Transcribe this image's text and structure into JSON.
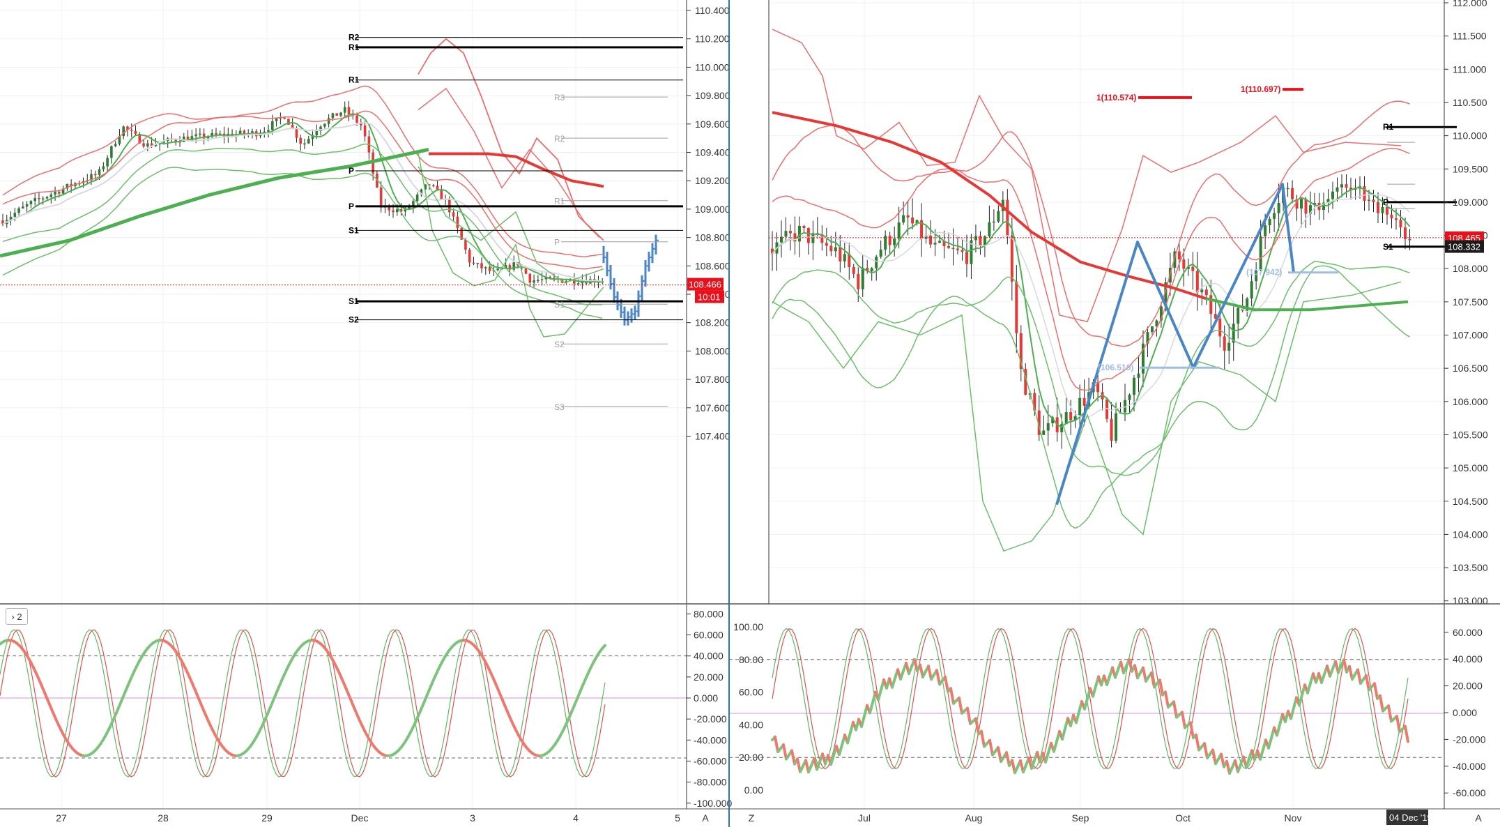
{
  "colors": {
    "up": "#2e7d32",
    "down": "#e53935",
    "band_red": "#ef6c6c",
    "band_green": "#6abf69",
    "ma_red": "#e53935",
    "ma_green": "#4caf50",
    "blue": "#4a86c5",
    "level": "#000000",
    "level_grey": "#9e9e9e",
    "price_tag": "#e8101a",
    "dark_tag": "#1b1b1b",
    "pane_border": "#2a73c9"
  },
  "left": {
    "y_ticks": [
      "110.400",
      "110.200",
      "110.000",
      "109.800",
      "109.600",
      "109.400",
      "109.200",
      "109.000",
      "108.800",
      "108.600",
      "108.400",
      "108.200",
      "108.000",
      "107.800",
      "107.600",
      "107.400"
    ],
    "x_ticks": [
      "27",
      "28",
      "29",
      "Dec",
      "3",
      "4",
      "5"
    ],
    "corner_label": "A",
    "price_tag": "108.466",
    "time_tag": "10:01",
    "levels": [
      {
        "label": "R2",
        "value": 110.21,
        "style": "thin"
      },
      {
        "label": "R1",
        "value": 110.14,
        "style": "bold"
      },
      {
        "label": "R1",
        "value": 109.91,
        "style": "thin"
      },
      {
        "label": "P",
        "value": 109.27,
        "style": "thin"
      },
      {
        "label": "P",
        "value": 109.02,
        "style": "bold"
      },
      {
        "label": "S1",
        "value": 108.85,
        "style": "thin"
      },
      {
        "label": "S1",
        "value": 108.35,
        "style": "bold"
      },
      {
        "label": "S2",
        "value": 108.22,
        "style": "thin"
      }
    ],
    "grey_levels": [
      {
        "label": "R3",
        "value": 109.79
      },
      {
        "label": "R2",
        "value": 109.5
      },
      {
        "label": "R1",
        "value": 109.06
      },
      {
        "label": "P",
        "value": 108.77
      },
      {
        "label": "S1",
        "value": 108.33
      },
      {
        "label": "S2",
        "value": 108.05
      },
      {
        "label": "S3",
        "value": 107.61
      }
    ],
    "osc_ticks": [
      "80.000",
      "60.000",
      "40.000",
      "20.000",
      "0.000",
      "-20.000",
      "-40.000",
      "-60.000",
      "-80.000",
      "-100.000"
    ],
    "osc_label": "2"
  },
  "right": {
    "y_ticks": [
      "112.000",
      "111.500",
      "111.000",
      "110.500",
      "110.000",
      "109.500",
      "109.000",
      "108.500",
      "108.000",
      "107.500",
      "107.000",
      "106.500",
      "106.000",
      "105.500",
      "105.000",
      "104.500",
      "104.000",
      "103.500",
      "103.000"
    ],
    "x_ticks": [
      "Jul",
      "Aug",
      "Sep",
      "Oct",
      "Nov"
    ],
    "date_tag": "04 Dec '19",
    "corner_label_left": "Z",
    "corner_label_right": "A",
    "price_tag": "108.465",
    "level_tag": "108.332",
    "levels": [
      {
        "label": "R1",
        "value": 110.13
      },
      {
        "label": "P",
        "value": 109.0
      },
      {
        "label": "S1",
        "value": 108.33
      }
    ],
    "annotations": [
      {
        "text": "1(110.574)",
        "value": 110.574
      },
      {
        "text": "1(110.697)",
        "value": 110.697
      },
      {
        "text": "(107.942)",
        "value": 107.942
      },
      {
        "text": "(106.510)",
        "value": 106.51
      }
    ],
    "osc_left_ticks": [
      "100.00",
      "80.00",
      "60.00",
      "40.00",
      "20.00",
      "0.00"
    ],
    "osc_right_ticks": [
      "60.000",
      "40.000",
      "20.000",
      "0.000",
      "-20.000",
      "-40.000",
      "-60.000"
    ]
  },
  "chart_data": [
    {
      "type": "candlestick",
      "title": "",
      "xlabel": "",
      "ylabel": "",
      "x_ticks": [
        "27",
        "28",
        "29",
        "Dec",
        "3",
        "4",
        "5"
      ],
      "ylim": [
        107.3,
        110.5
      ],
      "series": [
        {
          "role": "bands",
          "color": "red"
        },
        {
          "role": "bands",
          "color": "green"
        },
        {
          "role": "moving-average",
          "color": "green",
          "values_note": "rising"
        }
      ],
      "pivot_levels": {
        "R2": 110.21,
        "R1": 110.14,
        "P": 109.02,
        "S1": 108.35,
        "S2": 108.22
      },
      "last_price": 108.466
    },
    {
      "type": "candlestick",
      "title": "",
      "xlabel": "",
      "ylabel": "",
      "x_ticks": [
        "Jul",
        "Aug",
        "Sep",
        "Oct",
        "Nov"
      ],
      "ylim": [
        102.9,
        112.0
      ],
      "pattern_points": [
        104.45,
        108.4,
        106.51,
        109.27,
        107.942
      ],
      "pivot_levels": {
        "R1": 110.13,
        "P": 109.0,
        "S1": 108.33
      },
      "last_price": 108.465
    }
  ]
}
